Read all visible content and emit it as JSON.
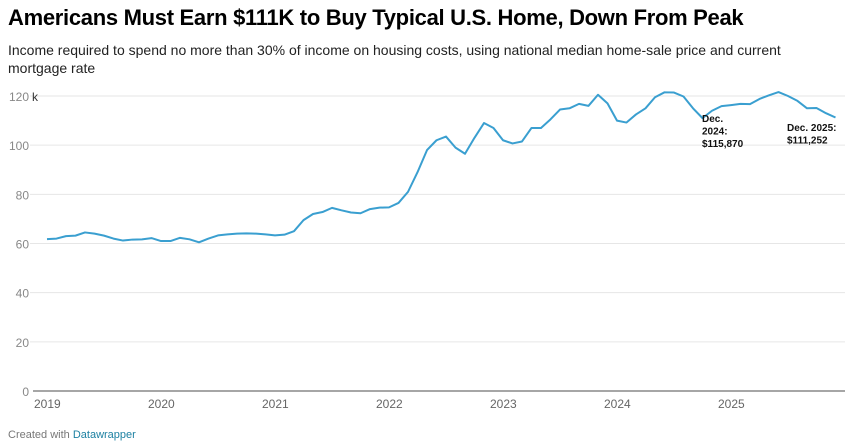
{
  "chart_data": {
    "type": "line",
    "title": "Americans Must Earn $111K to Buy Typical U.S. Home, Down From Peak",
    "subtitle": "Income required to spend no more than 30% of income on housing costs, using national median home-sale price and current mortgage rate",
    "y_unit_suffix": "k",
    "ylim": [
      0,
      120
    ],
    "y_ticks": [
      "0",
      "20",
      "40",
      "60",
      "80",
      "100",
      "120"
    ],
    "x_ticks": [
      "2019",
      "2020",
      "2021",
      "2022",
      "2023",
      "2024",
      "2025"
    ],
    "x_start": "2019-01",
    "x_end": "2025-12",
    "grid": true,
    "line_color": "#3a9fd0",
    "series": [
      {
        "values": [
          61.8,
          62,
          63,
          63.2,
          64.5,
          64,
          63.2,
          62,
          61.2,
          61.6,
          61.7,
          62.2,
          61,
          61,
          62.3,
          61.7,
          60.5,
          62,
          63.3,
          63.7,
          64,
          64.1,
          64,
          63.7,
          63.3,
          63.6,
          65,
          69.5,
          72,
          72.8,
          74.5,
          73.5,
          72.6,
          72.3,
          74,
          74.6,
          74.7,
          76.5,
          81,
          89,
          98,
          102,
          103.5,
          99,
          96.5,
          103,
          109,
          107,
          102,
          100.7,
          101.5,
          107,
          107,
          110.5,
          114.5,
          115,
          116.8,
          116,
          120.5,
          117,
          110,
          109.2,
          112.5,
          115,
          119.5,
          121.5,
          121.4,
          119.8,
          115,
          111,
          114,
          115.87,
          116.3,
          116.8,
          116.7,
          118.8,
          120.3,
          121.6,
          120,
          118,
          115,
          115.1,
          113,
          111.252
        ]
      }
    ],
    "annotations": [
      {
        "lines": [
          "Dec.",
          "2024:",
          "$115,870"
        ]
      },
      {
        "lines": [
          "Dec. 2025:",
          "$111,252"
        ]
      }
    ]
  },
  "footer": {
    "prefix": "Created with",
    "link": "Datawrapper"
  }
}
